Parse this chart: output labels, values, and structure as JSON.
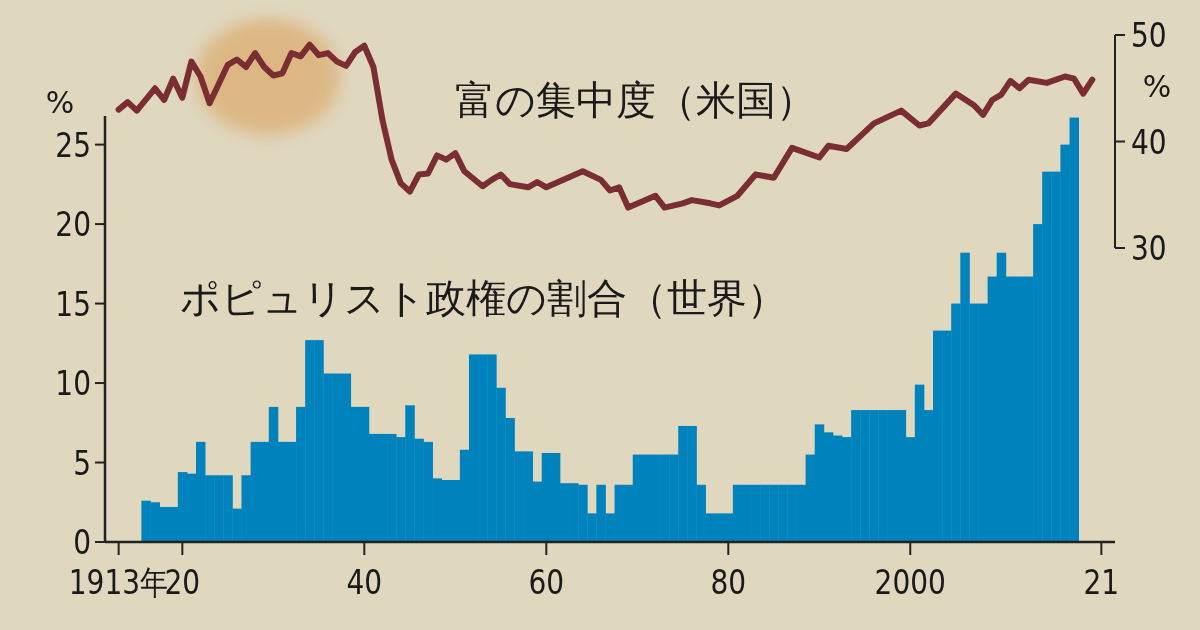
{
  "chart_data": {
    "type": "bar",
    "ylabel": "%",
    "y2label": "%",
    "xlim": [
      1911.5,
      2022.5
    ],
    "xticks": [
      {
        "value": 1913,
        "label": "1913年"
      },
      {
        "value": 1920,
        "label": "20"
      },
      {
        "value": 1940,
        "label": "40"
      },
      {
        "value": 1960,
        "label": "60"
      },
      {
        "value": 1980,
        "label": "80"
      },
      2000,
      {
        "value": 2021,
        "label": "21"
      }
    ],
    "ylim": [
      0,
      26.8
    ],
    "yticks": [
      0,
      5,
      10,
      15,
      20,
      25
    ],
    "y2lim": [
      2.4,
      50
    ],
    "y2ticks": [
      30,
      40,
      50
    ],
    "grid": false,
    "series": [
      {
        "name": "ポピュリスト政権の割合（世界）",
        "color": "#0083bd",
        "x": [
          1916,
          1917,
          1918,
          1919,
          1920,
          1921,
          1922,
          1923,
          1924,
          1925,
          1926,
          1927,
          1928,
          1929,
          1930,
          1931,
          1932,
          1933,
          1934,
          1935,
          1936,
          1937,
          1938,
          1939,
          1940,
          1941,
          1942,
          1943,
          1944,
          1945,
          1946,
          1947,
          1948,
          1949,
          1950,
          1951,
          1952,
          1953,
          1954,
          1955,
          1956,
          1957,
          1958,
          1959,
          1960,
          1961,
          1962,
          1963,
          1964,
          1965,
          1966,
          1967,
          1968,
          1969,
          1970,
          1971,
          1972,
          1973,
          1974,
          1975,
          1976,
          1977,
          1978,
          1979,
          1980,
          1981,
          1982,
          1983,
          1984,
          1985,
          1986,
          1987,
          1988,
          1989,
          1990,
          1991,
          1992,
          1993,
          1994,
          1995,
          1996,
          1997,
          1998,
          1999,
          2000,
          2001,
          2002,
          2003,
          2004,
          2005,
          2006,
          2007,
          2008,
          2009,
          2010,
          2011,
          2012,
          2013,
          2014,
          2015,
          2016,
          2017,
          2018
        ],
        "values": [
          2.6,
          2.5,
          2.2,
          2.2,
          4.4,
          4.3,
          6.3,
          4.2,
          4.2,
          4.2,
          2.1,
          4.2,
          6.3,
          6.3,
          8.5,
          6.3,
          6.3,
          8.5,
          12.7,
          12.7,
          10.6,
          10.6,
          10.6,
          8.5,
          8.5,
          6.8,
          6.8,
          6.8,
          6.6,
          8.6,
          6.5,
          6.3,
          4.0,
          3.9,
          3.9,
          5.8,
          11.8,
          11.8,
          11.8,
          9.7,
          7.8,
          5.7,
          5.7,
          3.8,
          5.6,
          5.6,
          3.7,
          3.7,
          3.6,
          1.8,
          3.6,
          1.8,
          3.6,
          3.6,
          5.5,
          5.5,
          5.5,
          5.5,
          5.5,
          7.3,
          7.3,
          3.6,
          1.8,
          1.8,
          1.8,
          3.6,
          3.6,
          3.6,
          3.6,
          3.6,
          3.6,
          3.6,
          3.6,
          5.5,
          7.4,
          6.9,
          6.7,
          6.6,
          8.3,
          8.3,
          8.3,
          8.3,
          8.3,
          8.3,
          6.6,
          9.9,
          8.3,
          13.3,
          13.3,
          15.0,
          18.2,
          15.0,
          15.0,
          16.7,
          18.2,
          16.7,
          16.7,
          16.7,
          20.0,
          23.3,
          23.3,
          25.0,
          26.7
        ]
      },
      {
        "name": "富の集中度（米国）",
        "type": "line",
        "axis": "y2",
        "color": "#7a2d33",
        "marker": "none",
        "line_style": "solid",
        "x": [
          1913,
          1914,
          1915,
          1917,
          1918,
          1919,
          1920,
          1921,
          1922,
          1923,
          1925,
          1926,
          1927,
          1928,
          1929,
          1930,
          1931,
          1932,
          1933,
          1934,
          1935,
          1936,
          1937,
          1938,
          1939,
          1940,
          1941,
          1942,
          1943,
          1944,
          1945,
          1946,
          1947,
          1948,
          1949,
          1950,
          1951,
          1953,
          1954,
          1955,
          1956,
          1958,
          1959,
          1960,
          1964,
          1966,
          1967,
          1968,
          1969,
          1972,
          1973,
          1975,
          1976,
          1978,
          1979,
          1981,
          1983,
          1985,
          1987,
          1990,
          1991,
          1993,
          1996,
          1999,
          2001,
          2002,
          2005,
          2007,
          2008,
          2009,
          2010,
          2011,
          2012,
          2013,
          2015,
          2017,
          2018,
          2019,
          2020
        ],
        "values": [
          43.0,
          43.7,
          42.9,
          45.0,
          43.9,
          45.9,
          44.1,
          47.5,
          46.1,
          43.6,
          47.2,
          47.7,
          47.0,
          48.3,
          47.0,
          46.2,
          46.4,
          48.3,
          48.0,
          49.1,
          48.1,
          48.3,
          47.5,
          47.1,
          48.4,
          49.0,
          47.0,
          42.0,
          38.3,
          36.1,
          35.3,
          36.9,
          37.0,
          38.7,
          38.3,
          38.9,
          37.2,
          35.8,
          36.4,
          36.9,
          36.0,
          35.7,
          36.2,
          35.7,
          37.2,
          36.4,
          35.4,
          35.7,
          33.8,
          34.9,
          33.8,
          34.2,
          34.5,
          34.2,
          34.0,
          34.9,
          36.9,
          36.6,
          39.4,
          38.5,
          39.6,
          39.3,
          41.7,
          42.9,
          41.5,
          41.7,
          44.5,
          43.4,
          42.5,
          43.9,
          44.4,
          45.7,
          45.0,
          45.8,
          45.5,
          46.1,
          45.9,
          44.5,
          45.8
        ]
      }
    ]
  }
}
